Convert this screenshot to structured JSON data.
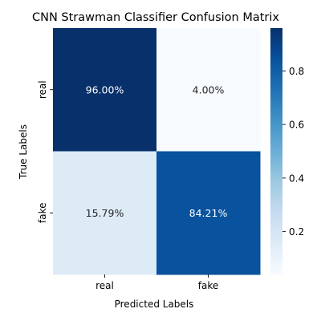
{
  "chart_data": {
    "type": "heatmap",
    "title": "CNN Strawman Classifier Confusion Matrix",
    "xlabel": "Predicted Labels",
    "ylabel": "True Labels",
    "x_categories": [
      "real",
      "fake"
    ],
    "y_categories": [
      "real",
      "fake"
    ],
    "values": [
      [
        0.96,
        0.04
      ],
      [
        0.1579,
        0.8421
      ]
    ],
    "cell_labels": [
      [
        "96.00%",
        "4.00%"
      ],
      [
        "15.79%",
        "84.21%"
      ]
    ],
    "colormap": "Blues",
    "vmin": 0.04,
    "vmax": 0.96,
    "colorbar_ticks": [
      0.2,
      0.4,
      0.6,
      0.8
    ],
    "colorbar_tick_labels": [
      "0.2",
      "0.4",
      "0.6",
      "0.8"
    ],
    "colors": {
      "low": "#f7fbff",
      "high": "#08306b"
    }
  }
}
